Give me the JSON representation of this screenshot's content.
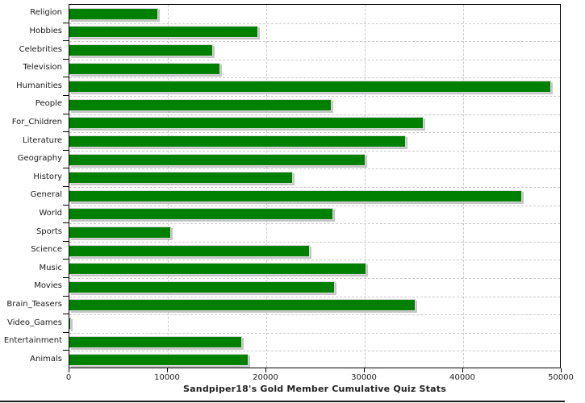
{
  "chart_data": {
    "type": "bar",
    "orientation": "horizontal",
    "title": "Sandpiper18's Gold Member Cumulative Quiz Stats",
    "xlabel": "",
    "ylabel": "",
    "xlim": [
      0,
      50000
    ],
    "x_ticks": [
      0,
      10000,
      20000,
      30000,
      40000,
      50000
    ],
    "x_tick_labels": [
      "0",
      "10000",
      "20000",
      "30000",
      "40000",
      "50000"
    ],
    "grid": "dashed, vertical at each x tick and horizontal at category boundaries",
    "legend": "none",
    "categories": [
      "Religion",
      "Hobbies",
      "Celebrities",
      "Television",
      "Humanities",
      "People",
      "For_Children",
      "Literature",
      "Geography",
      "History",
      "General",
      "World",
      "Sports",
      "Science",
      "Music",
      "Movies",
      "Brain_Teasers",
      "Video_Games",
      "Entertainment",
      "Animals"
    ],
    "values": [
      9000,
      19200,
      14600,
      15300,
      48900,
      26600,
      36000,
      34200,
      30100,
      22700,
      46000,
      26800,
      10300,
      24400,
      30200,
      27000,
      35200,
      200,
      17500,
      18200
    ]
  },
  "colors": {
    "bar_fill": "#008000",
    "bar_shadow": "#a0a0a0",
    "grid": "#c9c9c9",
    "axis": "#000000",
    "text": "#1a1a1a"
  }
}
